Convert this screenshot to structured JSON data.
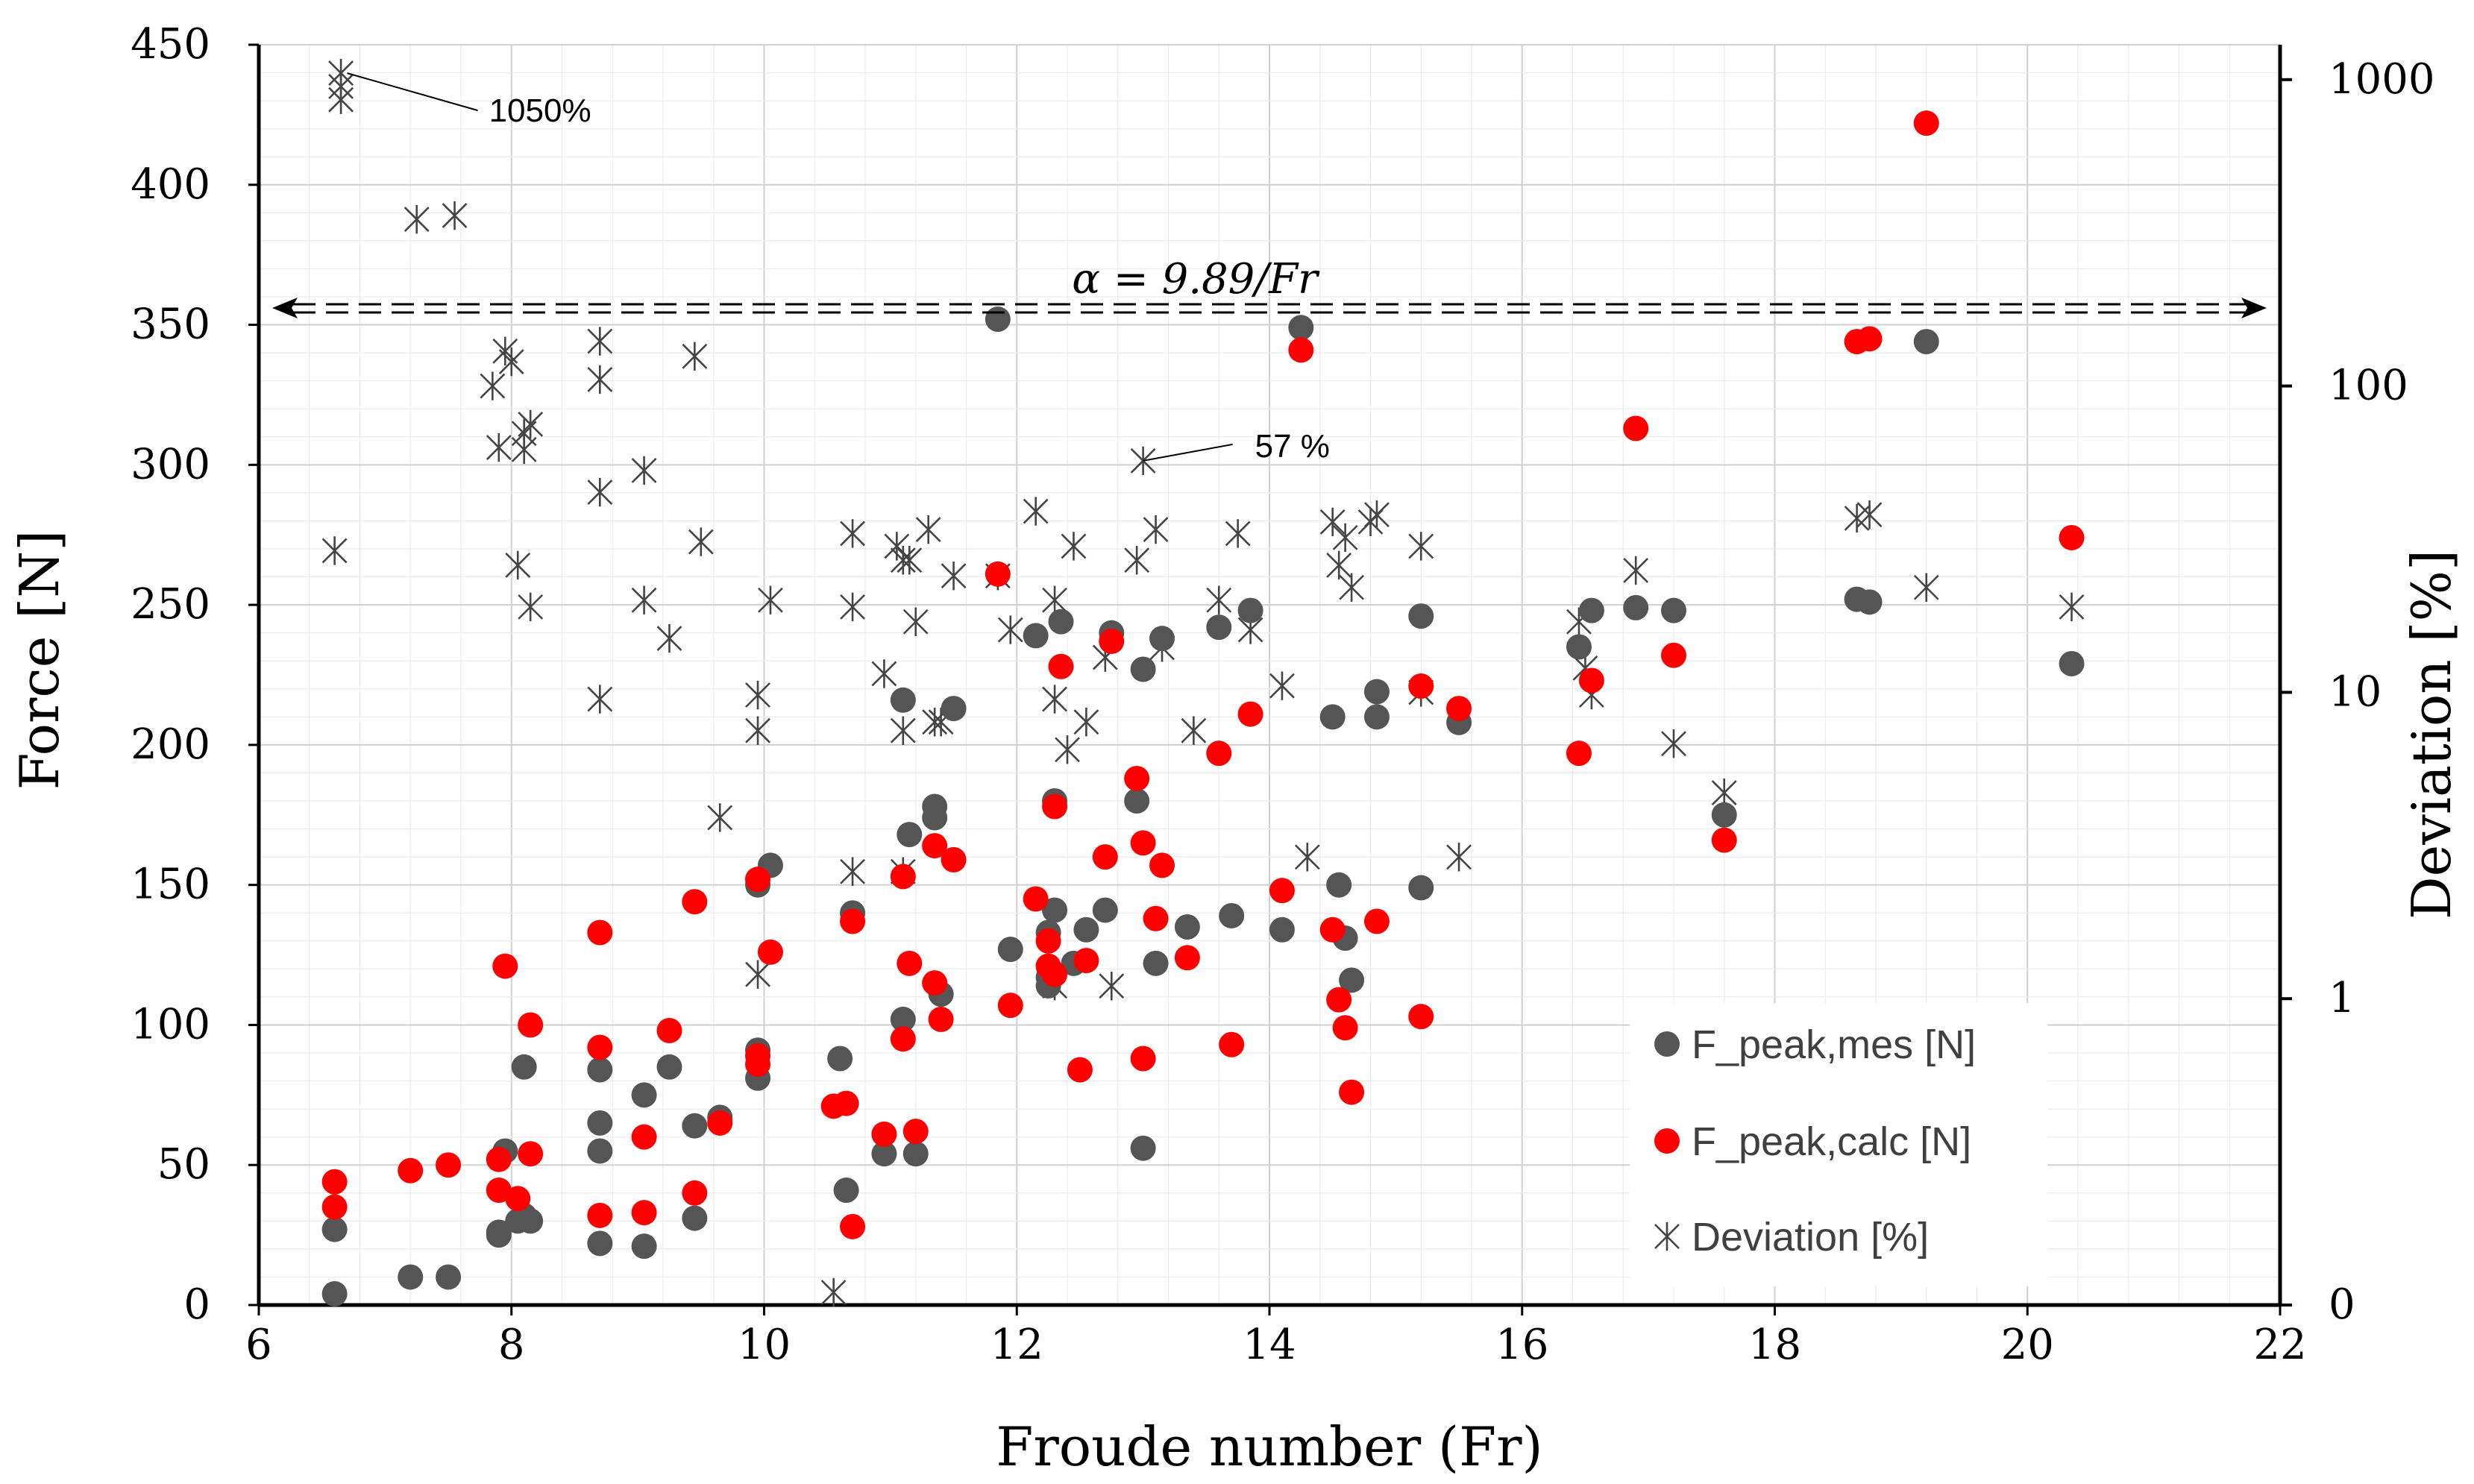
{
  "colors": {
    "measured": "#555555",
    "calculated": "#ff0000",
    "deviation": "#444444",
    "grid_major": "#d0d0d0",
    "grid_minor": "#ececec",
    "axis": "#000000"
  },
  "chart_data": {
    "type": "scatter",
    "title": "",
    "xlabel": "Froude number (Fr)",
    "ylabel": "Force [N]",
    "y2label": "Deviation [%]",
    "xlim": [
      6,
      22
    ],
    "ylim": [
      0,
      450
    ],
    "y2lim": [
      0.1,
      1300
    ],
    "y2scale": "log",
    "grid": true,
    "legend_position": "bottom-right",
    "x_ticks": [
      "6",
      "8",
      "10",
      "12",
      "14",
      "16",
      "18",
      "20",
      "22"
    ],
    "y_ticks": [
      "0",
      "50",
      "100",
      "150",
      "200",
      "250",
      "300",
      "350",
      "400",
      "450"
    ],
    "y2_ticks": [
      {
        "value": 0.1,
        "label": "0"
      },
      {
        "value": 1,
        "label": "1"
      },
      {
        "value": 10,
        "label": "10"
      },
      {
        "value": 100,
        "label": "100"
      },
      {
        "value": 1000,
        "label": "1000"
      }
    ],
    "annotations": {
      "formula": "α =  9.89/Fr",
      "formula_y_value": 356,
      "label_1050": "1050%",
      "label_1050_target": [
        6.7,
        1050
      ],
      "label_57": "57 %",
      "label_57_target": [
        13.0,
        57
      ]
    },
    "series": [
      {
        "name": "F_peak,mes [N]",
        "axis": "left",
        "marker": "dot",
        "points": [
          [
            6.6,
            4
          ],
          [
            6.6,
            27
          ],
          [
            7.2,
            10
          ],
          [
            7.5,
            10
          ],
          [
            7.9,
            25
          ],
          [
            7.9,
            26
          ],
          [
            7.95,
            55
          ],
          [
            8.05,
            30
          ],
          [
            8.1,
            32
          ],
          [
            8.1,
            85
          ],
          [
            8.15,
            30
          ],
          [
            8.7,
            22
          ],
          [
            8.7,
            55
          ],
          [
            8.7,
            65
          ],
          [
            8.7,
            84
          ],
          [
            9.05,
            21
          ],
          [
            9.05,
            75
          ],
          [
            9.25,
            85
          ],
          [
            9.45,
            31
          ],
          [
            9.45,
            64
          ],
          [
            9.65,
            67
          ],
          [
            9.95,
            81
          ],
          [
            9.95,
            91
          ],
          [
            9.95,
            150
          ],
          [
            10.05,
            157
          ],
          [
            10.6,
            88
          ],
          [
            10.65,
            41
          ],
          [
            10.7,
            140
          ],
          [
            10.95,
            54
          ],
          [
            11.1,
            102
          ],
          [
            11.1,
            216
          ],
          [
            11.15,
            168
          ],
          [
            11.2,
            54
          ],
          [
            11.35,
            174
          ],
          [
            11.35,
            178
          ],
          [
            11.4,
            111
          ],
          [
            11.5,
            213
          ],
          [
            11.95,
            127
          ],
          [
            11.85,
            352
          ],
          [
            12.15,
            239
          ],
          [
            12.25,
            114
          ],
          [
            12.25,
            117
          ],
          [
            12.25,
            133
          ],
          [
            12.3,
            141
          ],
          [
            12.3,
            180
          ],
          [
            12.35,
            244
          ],
          [
            12.45,
            122
          ],
          [
            12.55,
            134
          ],
          [
            12.7,
            141
          ],
          [
            12.75,
            240
          ],
          [
            12.95,
            180
          ],
          [
            13.0,
            227
          ],
          [
            13.0,
            56
          ],
          [
            13.1,
            122
          ],
          [
            13.15,
            238
          ],
          [
            13.35,
            135
          ],
          [
            13.6,
            242
          ],
          [
            13.7,
            139
          ],
          [
            13.85,
            248
          ],
          [
            14.1,
            134
          ],
          [
            14.25,
            349
          ],
          [
            14.5,
            210
          ],
          [
            14.55,
            150
          ],
          [
            14.6,
            131
          ],
          [
            14.65,
            116
          ],
          [
            14.85,
            210
          ],
          [
            14.85,
            219
          ],
          [
            15.2,
            149
          ],
          [
            15.2,
            246
          ],
          [
            15.5,
            208
          ],
          [
            16.45,
            235
          ],
          [
            16.55,
            248
          ],
          [
            16.9,
            249
          ],
          [
            17.2,
            248
          ],
          [
            17.6,
            175
          ],
          [
            18.65,
            252
          ],
          [
            18.75,
            251
          ],
          [
            19.2,
            344
          ],
          [
            20.35,
            229
          ]
        ]
      },
      {
        "name": "F_peak,calc [N]",
        "axis": "left",
        "marker": "dot",
        "points": [
          [
            6.6,
            35
          ],
          [
            6.6,
            44
          ],
          [
            7.2,
            48
          ],
          [
            7.5,
            50
          ],
          [
            7.9,
            41
          ],
          [
            7.9,
            52
          ],
          [
            7.95,
            121
          ],
          [
            8.05,
            38
          ],
          [
            8.15,
            54
          ],
          [
            8.15,
            100
          ],
          [
            8.7,
            32
          ],
          [
            8.7,
            92
          ],
          [
            8.7,
            133
          ],
          [
            9.05,
            33
          ],
          [
            9.05,
            60
          ],
          [
            9.25,
            98
          ],
          [
            9.45,
            40
          ],
          [
            9.45,
            144
          ],
          [
            9.65,
            65
          ],
          [
            9.95,
            86
          ],
          [
            9.95,
            89
          ],
          [
            9.95,
            152
          ],
          [
            10.05,
            126
          ],
          [
            10.55,
            71
          ],
          [
            10.65,
            72
          ],
          [
            10.7,
            28
          ],
          [
            10.7,
            137
          ],
          [
            10.95,
            61
          ],
          [
            11.1,
            95
          ],
          [
            11.1,
            153
          ],
          [
            11.15,
            122
          ],
          [
            11.2,
            62
          ],
          [
            11.35,
            115
          ],
          [
            11.35,
            164
          ],
          [
            11.4,
            102
          ],
          [
            11.5,
            159
          ],
          [
            11.85,
            261
          ],
          [
            11.95,
            107
          ],
          [
            12.15,
            145
          ],
          [
            12.25,
            130
          ],
          [
            12.25,
            121
          ],
          [
            12.3,
            178
          ],
          [
            12.3,
            118
          ],
          [
            12.35,
            228
          ],
          [
            12.5,
            84
          ],
          [
            12.55,
            123
          ],
          [
            12.7,
            160
          ],
          [
            12.75,
            237
          ],
          [
            12.95,
            188
          ],
          [
            13.0,
            88
          ],
          [
            13.0,
            165
          ],
          [
            13.1,
            138
          ],
          [
            13.15,
            157
          ],
          [
            13.35,
            124
          ],
          [
            13.6,
            197
          ],
          [
            13.7,
            93
          ],
          [
            13.85,
            211
          ],
          [
            14.1,
            148
          ],
          [
            14.25,
            341
          ],
          [
            14.5,
            134
          ],
          [
            14.55,
            109
          ],
          [
            14.6,
            99
          ],
          [
            14.65,
            76
          ],
          [
            14.85,
            137
          ],
          [
            15.2,
            103
          ],
          [
            15.2,
            221
          ],
          [
            15.5,
            213
          ],
          [
            16.45,
            197
          ],
          [
            16.55,
            223
          ],
          [
            16.9,
            313
          ],
          [
            17.2,
            232
          ],
          [
            17.6,
            166
          ],
          [
            18.65,
            344
          ],
          [
            18.75,
            345
          ],
          [
            19.2,
            422
          ],
          [
            20.35,
            274
          ]
        ]
      },
      {
        "name": "Deviation [%]",
        "axis": "right",
        "marker": "star",
        "points": [
          [
            6.65,
            1050
          ],
          [
            6.65,
            950
          ],
          [
            6.65,
            860
          ],
          [
            6.6,
            29
          ],
          [
            7.25,
            350
          ],
          [
            7.55,
            360
          ],
          [
            7.85,
            100
          ],
          [
            7.95,
            130
          ],
          [
            8.0,
            120
          ],
          [
            7.9,
            63
          ],
          [
            8.1,
            62
          ],
          [
            8.15,
            75
          ],
          [
            8.1,
            70
          ],
          [
            8.05,
            26
          ],
          [
            8.15,
            19
          ],
          [
            8.7,
            140
          ],
          [
            8.7,
            105
          ],
          [
            8.7,
            45
          ],
          [
            8.7,
            9.5
          ],
          [
            9.05,
            53
          ],
          [
            9.05,
            20
          ],
          [
            9.25,
            15
          ],
          [
            9.45,
            125
          ],
          [
            9.5,
            31
          ],
          [
            9.65,
            3.9
          ],
          [
            9.95,
            9.8
          ],
          [
            9.95,
            7.5
          ],
          [
            9.95,
            1.2
          ],
          [
            10.05,
            20
          ],
          [
            10.55,
            0.11
          ],
          [
            10.7,
            33
          ],
          [
            10.7,
            19
          ],
          [
            10.7,
            2.6
          ],
          [
            10.95,
            11.5
          ],
          [
            11.05,
            30
          ],
          [
            11.1,
            27
          ],
          [
            11.15,
            27
          ],
          [
            11.1,
            7.5
          ],
          [
            11.1,
            2.6
          ],
          [
            11.2,
            17
          ],
          [
            11.3,
            34
          ],
          [
            11.35,
            8
          ],
          [
            11.4,
            8
          ],
          [
            11.5,
            24
          ],
          [
            11.85,
            24
          ],
          [
            11.95,
            16
          ],
          [
            12.15,
            39
          ],
          [
            12.3,
            20
          ],
          [
            12.3,
            9.5
          ],
          [
            12.25,
            1.2
          ],
          [
            12.3,
            1.1
          ],
          [
            12.4,
            6.5
          ],
          [
            12.45,
            30
          ],
          [
            12.55,
            8
          ],
          [
            12.7,
            13
          ],
          [
            12.75,
            1.1
          ],
          [
            12.95,
            27
          ],
          [
            13.0,
            57
          ],
          [
            13.1,
            34
          ],
          [
            13.15,
            14
          ],
          [
            13.4,
            7.5
          ],
          [
            13.6,
            20
          ],
          [
            13.75,
            33
          ],
          [
            13.85,
            16
          ],
          [
            14.1,
            10.5
          ],
          [
            14.3,
            2.9
          ],
          [
            14.5,
            36
          ],
          [
            14.55,
            26
          ],
          [
            14.6,
            32
          ],
          [
            14.65,
            22
          ],
          [
            14.8,
            36
          ],
          [
            14.85,
            38
          ],
          [
            15.2,
            30
          ],
          [
            15.2,
            10
          ],
          [
            15.5,
            2.9
          ],
          [
            16.45,
            17
          ],
          [
            16.5,
            12
          ],
          [
            16.55,
            9.8
          ],
          [
            16.9,
            25
          ],
          [
            17.2,
            6.8
          ],
          [
            17.6,
            4.7
          ],
          [
            18.65,
            37
          ],
          [
            18.75,
            38
          ],
          [
            19.2,
            22
          ],
          [
            20.35,
            19
          ]
        ]
      }
    ]
  }
}
